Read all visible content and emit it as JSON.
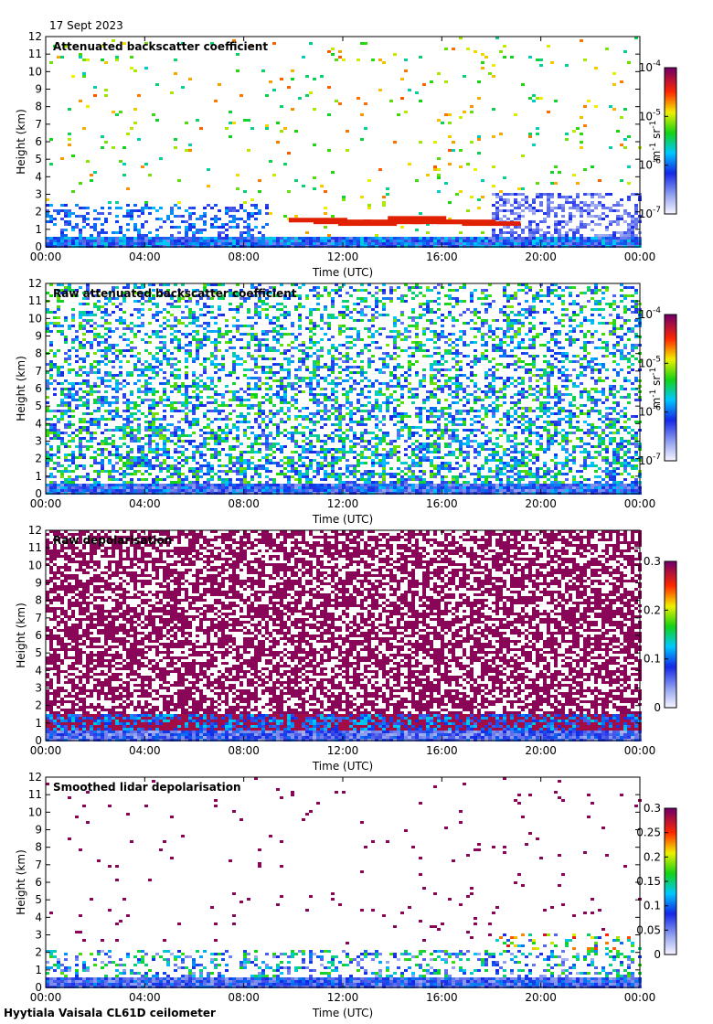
{
  "date": "17 Sept 2023",
  "footer": "Hyytiala Vaisala CL61D ceilometer",
  "chart_data": [
    {
      "type": "heatmap",
      "title": "Attenuated backscatter coefficient",
      "xlabel": "Time (UTC)",
      "ylabel": "Height (km)",
      "x_ticks": [
        "00:00",
        "04:00",
        "08:00",
        "12:00",
        "16:00",
        "20:00",
        "00:00"
      ],
      "y_ticks": [
        "0",
        "1",
        "2",
        "3",
        "4",
        "5",
        "6",
        "7",
        "8",
        "9",
        "10",
        "11",
        "12"
      ],
      "ylim": [
        0,
        12
      ],
      "colorbar": {
        "scale": "log",
        "ticks": [
          "10",
          "10",
          "10",
          "10"
        ],
        "exponents": [
          "-4",
          "-5",
          "-6",
          "-7"
        ],
        "unit": "m",
        "unit_exp": "-1",
        "unit2": "sr",
        "unit2_exp": "-1",
        "range": [
          1e-07,
          0.0001
        ]
      },
      "features": {
        "cloud_base_km": [
          {
            "t": 11.0,
            "h": 1.5
          },
          {
            "t": 12.0,
            "h": 1.4
          },
          {
            "t": 13.0,
            "h": 1.3
          },
          {
            "t": 14.0,
            "h": 1.4
          },
          {
            "t": 15.0,
            "h": 1.6
          },
          {
            "t": 16.0,
            "h": 1.4
          },
          {
            "t": 17.0,
            "h": 1.4
          },
          {
            "t": 18.0,
            "h": 1.3
          }
        ]
      }
    },
    {
      "type": "heatmap",
      "title": "Raw attenuated backscatter coefficient",
      "xlabel": "Time (UTC)",
      "ylabel": "Height (km)",
      "x_ticks": [
        "00:00",
        "04:00",
        "08:00",
        "12:00",
        "16:00",
        "20:00",
        "00:00"
      ],
      "y_ticks": [
        "0",
        "1",
        "2",
        "3",
        "4",
        "5",
        "6",
        "7",
        "8",
        "9",
        "10",
        "11",
        "12"
      ],
      "ylim": [
        0,
        12
      ],
      "colorbar": {
        "scale": "log",
        "ticks": [
          "10",
          "10",
          "10",
          "10"
        ],
        "exponents": [
          "-4",
          "-5",
          "-6",
          "-7"
        ],
        "unit": "m",
        "unit_exp": "-1",
        "unit2": "sr",
        "unit2_exp": "-1",
        "range": [
          1e-07,
          0.0001
        ]
      }
    },
    {
      "type": "heatmap",
      "title": "Raw depolarisation",
      "xlabel": "Time (UTC)",
      "ylabel": "Height (km)",
      "x_ticks": [
        "00:00",
        "04:00",
        "08:00",
        "12:00",
        "16:00",
        "20:00",
        "00:00"
      ],
      "y_ticks": [
        "0",
        "1",
        "2",
        "3",
        "4",
        "5",
        "6",
        "7",
        "8",
        "9",
        "10",
        "11",
        "12"
      ],
      "ylim": [
        0,
        12
      ],
      "colorbar": {
        "scale": "linear",
        "ticks": [
          "0.3",
          "0.2",
          "0.1",
          "0"
        ],
        "range": [
          0,
          0.3
        ]
      }
    },
    {
      "type": "heatmap",
      "title": "Smoothed lidar depolarisation",
      "xlabel": "Time (UTC)",
      "ylabel": "Height (km)",
      "x_ticks": [
        "00:00",
        "04:00",
        "08:00",
        "12:00",
        "16:00",
        "20:00",
        "00:00"
      ],
      "y_ticks": [
        "0",
        "1",
        "2",
        "3",
        "4",
        "5",
        "6",
        "7",
        "8",
        "9",
        "10",
        "11",
        "12"
      ],
      "ylim": [
        0,
        12
      ],
      "colorbar": {
        "scale": "linear",
        "ticks": [
          "0.3",
          "0.25",
          "0.2",
          "0.15",
          "0.1",
          "0.05",
          "0"
        ],
        "range": [
          0,
          0.3
        ]
      }
    }
  ]
}
